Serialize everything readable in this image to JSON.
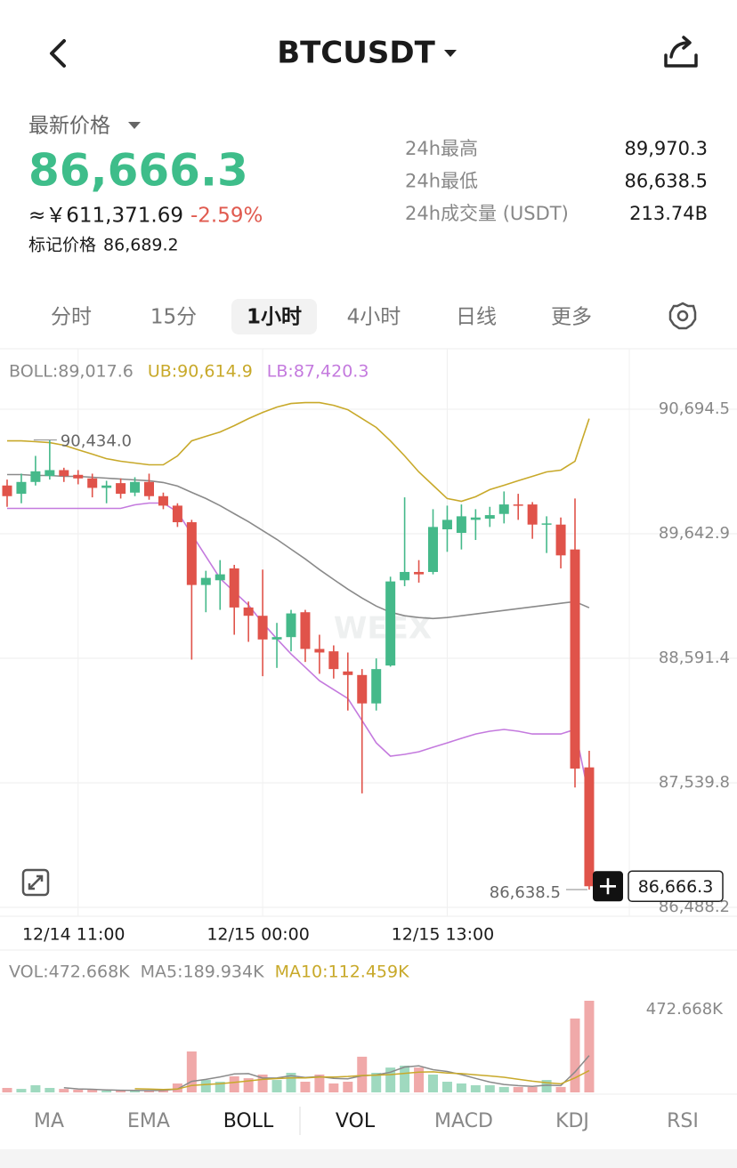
{
  "header": {
    "title": "BTCUSDT"
  },
  "ticker": {
    "label": "最新价格",
    "price": "86,666.3",
    "cny": "≈￥611,371.69",
    "change": "-2.59%",
    "mark_label": "标记价格",
    "mark_price": "86,689.2",
    "stats": [
      [
        "24h最高",
        "89,970.3"
      ],
      [
        "24h最低",
        "86,638.5"
      ],
      [
        "24h成交量 (USDT)",
        "213.74B"
      ]
    ]
  },
  "tabs": {
    "items": [
      "分时",
      "15分",
      "1小时",
      "4小时",
      "日线",
      "更多"
    ],
    "active": 2
  },
  "indicators": {
    "items": [
      "MA",
      "EMA",
      "BOLL",
      "VOL",
      "MACD",
      "KDJ",
      "RSI"
    ],
    "active": [
      2,
      3
    ]
  },
  "chart_data": [
    {
      "type": "candlestick",
      "categories": [
        null,
        null,
        null,
        null,
        null,
        "12/14 11:00",
        null,
        null,
        null,
        null,
        null,
        null,
        null,
        null,
        null,
        null,
        null,
        null,
        "12/15 00:00",
        null,
        null,
        null,
        null,
        null,
        null,
        null,
        null,
        null,
        null,
        null,
        null,
        "12/15 13:00",
        null,
        null,
        null,
        null,
        null,
        null,
        null,
        null,
        null,
        null
      ],
      "open": [
        90050,
        89980,
        90080,
        90130,
        90180,
        90140,
        90110,
        90030,
        90070,
        89990,
        90080,
        89960,
        89880,
        89740,
        89210,
        89250,
        89350,
        89020,
        88950,
        88750,
        88770,
        88980,
        88670,
        88650,
        88480,
        88450,
        88210,
        88530,
        89250,
        89320,
        89320,
        89680,
        89650,
        89760,
        89770,
        89810,
        89890,
        89890,
        89720,
        89720,
        89510,
        87670
      ],
      "high": [
        90100,
        90150,
        90300,
        90434,
        90200,
        90180,
        90150,
        90090,
        90110,
        90120,
        90150,
        89990,
        89900,
        89760,
        89330,
        89420,
        89380,
        89070,
        89340,
        88890,
        89000,
        89000,
        88790,
        88700,
        88640,
        88500,
        88590,
        89280,
        89950,
        89420,
        89850,
        89880,
        89890,
        89850,
        89870,
        90000,
        89980,
        89910,
        89790,
        89780,
        89940,
        87810
      ],
      "low": [
        89870,
        89900,
        90050,
        90100,
        90080,
        90060,
        89950,
        89900,
        89940,
        89960,
        89930,
        89850,
        89700,
        88580,
        88980,
        89000,
        88790,
        88730,
        88440,
        88510,
        88650,
        88560,
        88460,
        88420,
        88150,
        87450,
        88150,
        88520,
        89200,
        89230,
        89300,
        89490,
        89510,
        89590,
        89700,
        89730,
        89760,
        89600,
        89480,
        89350,
        87500,
        86638.5
      ],
      "close": [
        89960,
        90080,
        90170,
        90180,
        90130,
        90110,
        90030,
        90050,
        89980,
        90080,
        89960,
        89880,
        89740,
        89210,
        89270,
        89300,
        89020,
        88950,
        88750,
        88770,
        88970,
        88670,
        88640,
        88500,
        88450,
        88210,
        88500,
        89240,
        89320,
        89300,
        89700,
        89760,
        89790,
        89780,
        89800,
        89890,
        89880,
        89720,
        89730,
        89460,
        87660,
        86666.3
      ],
      "up_color": "#45b98a",
      "down_color": "#e0534a",
      "series": [
        {
          "name": "BOLL:89,017.6",
          "color": "#8a8a8a",
          "values": [
            90142,
            90142,
            90135,
            90135,
            90127,
            90127,
            90120,
            90112,
            90105,
            90097,
            90090,
            90075,
            90045,
            89992,
            89940,
            89880,
            89812,
            89745,
            89670,
            89595,
            89512,
            89430,
            89340,
            89257,
            89175,
            89100,
            89032,
            88980,
            88950,
            88935,
            88927,
            88935,
            88950,
            88965,
            88980,
            88995,
            89010,
            89025,
            89040,
            89055,
            89070,
            89017.6
          ]
        },
        {
          "name": "UB:90,614.9",
          "color": "#c8a92a",
          "values": [
            90427,
            90427,
            90420,
            90412,
            90390,
            90352,
            90315,
            90277,
            90255,
            90240,
            90225,
            90225,
            90300,
            90427,
            90465,
            90502,
            90555,
            90615,
            90667,
            90712,
            90742,
            90750,
            90750,
            90727,
            90690,
            90615,
            90540,
            90427,
            90300,
            90165,
            90052,
            89940,
            89917,
            89955,
            90015,
            90052,
            90090,
            90127,
            90165,
            90180,
            90255,
            90614.9
          ]
        },
        {
          "name": "LB:87,420.3",
          "color": "#c47ade",
          "values": [
            89857,
            89857,
            89857,
            89857,
            89857,
            89857,
            89857,
            89857,
            89857,
            89887,
            89902,
            89902,
            89827,
            89640,
            89452,
            89265,
            89152,
            89040,
            88890,
            88755,
            88627,
            88515,
            88402,
            88327,
            88252,
            88065,
            87877,
            87765,
            87780,
            87802,
            87840,
            87877,
            87915,
            87952,
            87975,
            87990,
            87975,
            87952,
            87952,
            87952,
            87990,
            87420.3
          ]
        }
      ],
      "ylim": [
        86413,
        91205
      ],
      "yticks": [
        {
          "value": 90694.5,
          "label": "90,694.5"
        },
        {
          "value": 89642.9,
          "label": "89,642.9"
        },
        {
          "value": 88591.4,
          "label": "88,591.4"
        },
        {
          "value": 87539.8,
          "label": "87,539.8"
        },
        {
          "value": 86488.2,
          "label": "86,488.2"
        }
      ],
      "grid": true,
      "high_label": "90,434.0",
      "low_label": "86,638.5",
      "last_price_label": "86,666.3",
      "watermark": "WEEX"
    },
    {
      "type": "bar",
      "up_color": "#9fd9bf",
      "down_color": "#f0a9a9",
      "series": [
        {
          "name": "VOL:472.668K",
          "color": "#8a8a8a",
          "kind": "bar",
          "values": [
            23000,
            18000,
            37000,
            23000,
            18000,
            14000,
            14000,
            9000,
            9000,
            9000,
            9000,
            14000,
            46000,
            211000,
            64000,
            55000,
            83000,
            73000,
            92000,
            64000,
            101000,
            55000,
            92000,
            46000,
            55000,
            184000,
            101000,
            128000,
            138000,
            128000,
            92000,
            55000,
            46000,
            37000,
            37000,
            28000,
            28000,
            28000,
            64000,
            28000,
            381000,
            472668
          ]
        },
        {
          "name": "MA5:189.934K",
          "color": "#8a8a8a",
          "kind": "line",
          "values": [
            null,
            null,
            null,
            null,
            24000,
            18000,
            16000,
            13000,
            11000,
            10000,
            9000,
            10000,
            17000,
            57000,
            67000,
            80000,
            95000,
            97000,
            74000,
            75000,
            86000,
            77000,
            81000,
            72000,
            70000,
            86000,
            90000,
            104000,
            131000,
            137000,
            117000,
            108000,
            92000,
            72000,
            53000,
            41000,
            35000,
            31000,
            37000,
            35000,
            105000,
            189934
          ]
        },
        {
          "name": "MA10:112.459K",
          "color": "#c8a92a",
          "kind": "line",
          "values": [
            null,
            null,
            null,
            null,
            null,
            null,
            null,
            null,
            null,
            19000,
            17000,
            15000,
            17000,
            36000,
            41000,
            45000,
            52000,
            59000,
            67000,
            71000,
            75000,
            75000,
            79000,
            79000,
            82000,
            87000,
            89000,
            92000,
            98000,
            104000,
            106000,
            100000,
            97000,
            91000,
            85000,
            78000,
            68000,
            58000,
            50000,
            44000,
            75000,
            112459
          ]
        }
      ],
      "ylim": [
        0,
        725000
      ],
      "yticks": [
        {
          "value": 472668,
          "label": "472.668K"
        }
      ]
    }
  ]
}
